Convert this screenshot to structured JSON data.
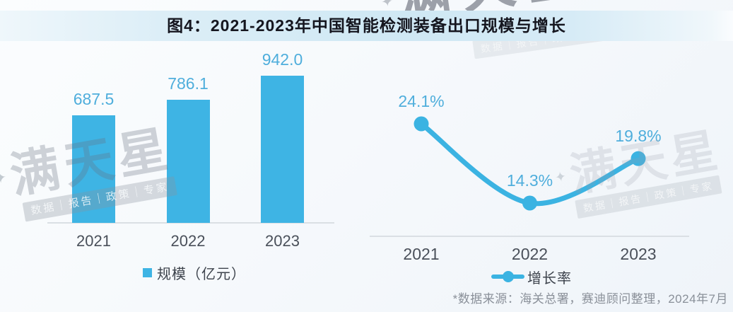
{
  "title": "图4：2021-2023年中国智能检测装备出口规模与增长",
  "watermark": {
    "star": "✦",
    "brand": "满天星",
    "tagline": "数据｜报告｜政策｜专家"
  },
  "colors": {
    "bar_fill": "#3EB4E4",
    "line_stroke": "#3BB3E2",
    "value_label_blue": "#4FAEDC",
    "axis_text": "#4A505A",
    "baseline_gray": "#DADFE4",
    "title_text": "#15161F",
    "footer_text": "#8A9099",
    "title_strip_blue": "#CFE8F4"
  },
  "chart_data": [
    {
      "type": "bar",
      "name": "export-scale",
      "categories": [
        "2021",
        "2022",
        "2023"
      ],
      "values": [
        687.5,
        786.1,
        942.0
      ],
      "value_labels": [
        "687.5",
        "786.1",
        "942.0"
      ],
      "legend": "规模（亿元）",
      "ylabel": "亿元",
      "ylim": [
        0,
        1000
      ],
      "grid": false,
      "legend_position": "bottom"
    },
    {
      "type": "line",
      "name": "export-growth-rate",
      "categories": [
        "2021",
        "2022",
        "2023"
      ],
      "values": [
        24.1,
        14.3,
        19.8
      ],
      "value_labels": [
        "24.1%",
        "14.3%",
        "19.8%"
      ],
      "legend": "增长率",
      "ylabel": "%",
      "grid": false,
      "legend_position": "bottom",
      "smooth": true
    }
  ],
  "footer": {
    "source_note": "*数据来源：海关总署，赛迪顾问整理，2024年7月"
  }
}
